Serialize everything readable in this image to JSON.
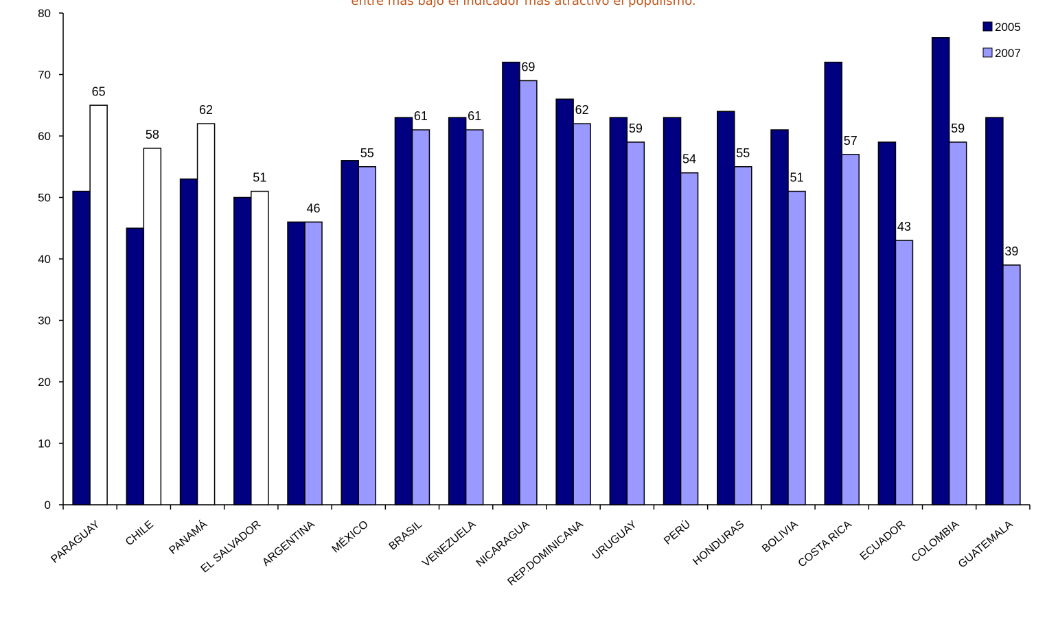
{
  "chart_data": {
    "type": "bar",
    "title": "entre más bajo el indicador más atractivo el populismo.",
    "xlabel": "",
    "ylabel": "",
    "ylim": [
      0,
      80
    ],
    "yticks": [
      0,
      10,
      20,
      30,
      40,
      50,
      60,
      70,
      80
    ],
    "grid": false,
    "legend_position": "top-right",
    "categories": [
      "PARAGUAY",
      "CHILE",
      "PANAMÁ",
      "EL SALVADOR",
      "ARGENTINA",
      "MÉXICO",
      "BRASIL",
      "VENEZUELA",
      "NICARAGUA",
      "REP.DOMINICANA",
      "URUGUAY",
      "PERÚ",
      "HONDURAS",
      "BOLIVIA",
      "COSTA RICA",
      "ECUADOR",
      "COLOMBIA",
      "GUATEMALA"
    ],
    "series": [
      {
        "name": "2005",
        "color": "#000080",
        "values": [
          51,
          45,
          53,
          50,
          46,
          56,
          63,
          63,
          72,
          66,
          63,
          63,
          64,
          61,
          72,
          59,
          76,
          63
        ]
      },
      {
        "name": "2007",
        "color": "#9999ff",
        "highlight_color": "#ffffff",
        "highlight_count": 4,
        "values": [
          65,
          58,
          62,
          51,
          46,
          55,
          61,
          61,
          69,
          62,
          59,
          54,
          55,
          51,
          57,
          43,
          59,
          39
        ],
        "data_labels": [
          "65",
          "58",
          "62",
          "51",
          "46",
          "55",
          "61",
          "61",
          "69",
          "62",
          "59",
          "54",
          "55",
          "51",
          "57",
          "43",
          "59",
          "39"
        ]
      }
    ]
  }
}
